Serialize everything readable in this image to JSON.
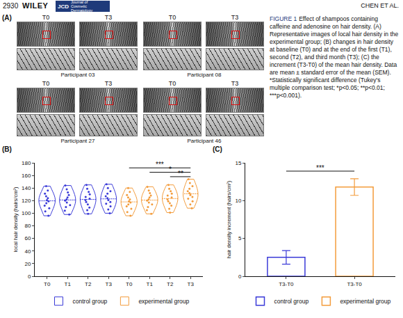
{
  "header": {
    "page": "2930",
    "publisher": "WILEY",
    "journal_abbr": "JCD",
    "journal": "Journal of Cosmetic Dermatology",
    "running_head": "CHEN ET AL."
  },
  "figure": {
    "label": "FIGURE 1",
    "caption": "Effect of shampoos containing caffeine and adenosine on hair density. (A) Representative images of local hair density in the experimental group; (B) changes in hair density at baseline (T0) and at the end of the first (T1), second (T2), and third month (T3); (C) the increment (T3-T0) of the mean hair density. Data are mean ± standard error of the mean (SEM). *Statistically significant difference (Tukey's multiple comparison test; *p<0.05; **p<0.01; ***p<0.001)."
  },
  "panel_a": {
    "panel": "(A)",
    "columns": [
      "T0",
      "T3"
    ],
    "participants": [
      "Participant 03",
      "Participant 08",
      "Participant 27",
      "Participant 46"
    ]
  },
  "chart_data": [
    {
      "panel": "(B)",
      "type": "violin",
      "categories": [
        "T0",
        "T1",
        "T2",
        "T3",
        "T0",
        "T1",
        "T2",
        "T3"
      ],
      "y_label": "local hair density (hairs/cm²)",
      "ylim": [
        0,
        180
      ],
      "yticks": [
        0,
        20,
        40,
        60,
        80,
        100,
        120,
        140,
        160,
        180
      ],
      "legend": "bottom",
      "series": [
        {
          "name": "control group",
          "color": "#3a3ad8",
          "positions": [
            0,
            1,
            2,
            3
          ],
          "values": [
            [
              96,
              103,
              108,
              112,
              116,
              119,
              121,
              124,
              127,
              131,
              136,
              143
            ],
            [
              98,
              104,
              110,
              113,
              117,
              120,
              122,
              125,
              129,
              133,
              138,
              144
            ],
            [
              99,
              105,
              109,
              114,
              118,
              121,
              123,
              126,
              130,
              134,
              139,
              145
            ],
            [
              100,
              106,
              111,
              115,
              118,
              121,
              124,
              127,
              131,
              135,
              140,
              146
            ]
          ]
        },
        {
          "name": "experimental group",
          "color": "#f39c3c",
          "positions": [
            4,
            5,
            6,
            7
          ],
          "values": [
            [
              96,
              102,
              107,
              111,
              114,
              117,
              119,
              122,
              125,
              129,
              134,
              140
            ],
            [
              99,
              105,
              110,
              114,
              117,
              120,
              122,
              125,
              128,
              132,
              136,
              142
            ],
            [
              101,
              107,
              112,
              116,
              119,
              122,
              125,
              128,
              131,
              135,
              139,
              145
            ],
            [
              108,
              114,
              119,
              123,
              126,
              129,
              132,
              135,
              139,
              143,
              148,
              154
            ]
          ]
        }
      ],
      "significance": [
        {
          "from": 4,
          "to": 7,
          "y": 172,
          "label": "***"
        },
        {
          "from": 5,
          "to": 7,
          "y": 165,
          "label": "*"
        },
        {
          "from": 6,
          "to": 7,
          "y": 158,
          "label": "**"
        }
      ]
    },
    {
      "panel": "(C)",
      "type": "bar",
      "categories": [
        "T3-T0",
        "T3-T0"
      ],
      "y_label": "hair density increment (hairs/cm²)",
      "ylim": [
        0,
        15
      ],
      "yticks": [
        0,
        5,
        10,
        15
      ],
      "legend": "bottom",
      "series": [
        {
          "name": "control group",
          "color": "#3a3ad8",
          "values": [
            2.5,
            null
          ],
          "errors": [
            0.9,
            null
          ]
        },
        {
          "name": "experimental group",
          "color": "#f39c3c",
          "values": [
            null,
            11.8
          ],
          "errors": [
            null,
            1.1
          ]
        }
      ],
      "significance": [
        {
          "from": 0,
          "to": 1,
          "y": 13.9,
          "label": "***"
        }
      ]
    }
  ]
}
